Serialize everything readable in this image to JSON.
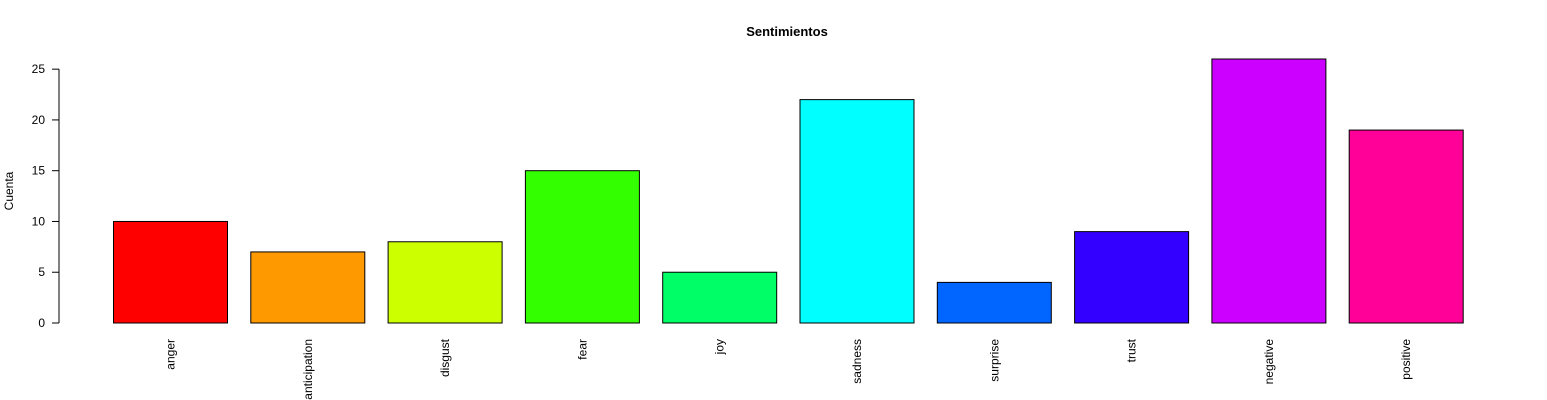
{
  "chart_data": {
    "type": "bar",
    "title": "Sentimientos",
    "xlabel": "",
    "ylabel": "Cuenta",
    "categories": [
      "anger",
      "anticipation",
      "disgust",
      "fear",
      "joy",
      "sadness",
      "surprise",
      "trust",
      "negative",
      "positive"
    ],
    "values": [
      10,
      7,
      8,
      15,
      5,
      22,
      4,
      9,
      26,
      19
    ],
    "colors": [
      "#FF0000",
      "#FF9900",
      "#CCFF00",
      "#33FF00",
      "#00FF66",
      "#00FFFF",
      "#0066FF",
      "#3300FF",
      "#CC00FF",
      "#FF0099"
    ],
    "yticks": [
      0,
      5,
      10,
      15,
      20,
      25
    ],
    "ylim": [
      0,
      26
    ],
    "grid": false,
    "legend": "none"
  }
}
